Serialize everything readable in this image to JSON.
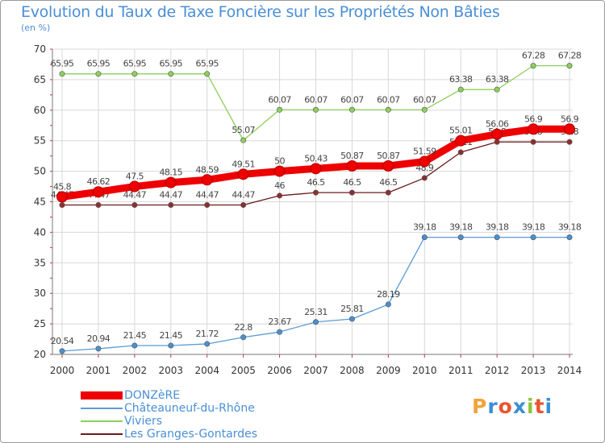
{
  "title": "Evolution du Taux de Taxe Foncière sur les Propriétés Non Bâties",
  "unit": "(en %)",
  "brand": {
    "letters": [
      "P",
      "r",
      "o",
      "x",
      "i",
      "t",
      "i"
    ],
    "colors": [
      "#f2a33a",
      "#3a8fd6",
      "#e8552d",
      "#3a8fd6",
      "#8cc43e",
      "#e8552d",
      "#3a8fd6"
    ]
  },
  "chart_data": {
    "type": "line",
    "title": "Evolution du Taux de Taxe Foncière sur les Propriétés Non Bâties",
    "ylabel": "(en %)",
    "xlabel": "",
    "ylim": [
      20,
      70
    ],
    "yticks": [
      20,
      25,
      30,
      35,
      40,
      45,
      50,
      55,
      60,
      65,
      70
    ],
    "grid": true,
    "legend": "bottom-left",
    "categories": [
      "2000",
      "2001",
      "2002",
      "2003",
      "2004",
      "2005",
      "2006",
      "2007",
      "2008",
      "2009",
      "2010",
      "2011",
      "2012",
      "2013",
      "2014"
    ],
    "series": [
      {
        "name": "Les Granges-Gontardes",
        "color": "#6b1a1a",
        "point": "#8c2f2f",
        "weight": "thin",
        "values": [
          44.47,
          44.47,
          44.47,
          44.47,
          44.47,
          44.47,
          46,
          46.5,
          46.5,
          46.5,
          48.9,
          53.11,
          54.8,
          54.8,
          54.8
        ],
        "labels": [
          "44.47",
          "44.47",
          "44.47",
          "44.47",
          "44.47",
          "44.47",
          "46",
          "46.5",
          "46.5",
          "46.5",
          "48.9",
          "53.11",
          "54.8",
          "54.8",
          "54.8"
        ]
      },
      {
        "name": "Viviers",
        "color": "#8dcf5a",
        "point": "#8dcf5a",
        "weight": "thin",
        "values": [
          65.95,
          65.95,
          65.95,
          65.95,
          65.95,
          55.07,
          60.07,
          60.07,
          60.07,
          60.07,
          60.07,
          63.38,
          63.38,
          67.28,
          67.28
        ],
        "labels": [
          "65.95",
          "65.95",
          "65.95",
          "65.95",
          "65.95",
          "55.07",
          "60.07",
          "60.07",
          "60.07",
          "60.07",
          "60.07",
          "63.38",
          "63.38",
          "67.28",
          "67.28"
        ]
      },
      {
        "name": "Châteauneuf-du-Rhône",
        "color": "#5a9bd5",
        "point": "#4a90d0",
        "weight": "thin",
        "values": [
          20.54,
          20.94,
          21.45,
          21.45,
          21.72,
          22.8,
          23.67,
          25.31,
          25.81,
          28.19,
          39.18,
          39.18,
          39.18,
          39.18,
          39.18
        ],
        "labels": [
          "20.54",
          "20.94",
          "21.45",
          "21.45",
          "21.72",
          "22.8",
          "23.67",
          "25.31",
          "25.81",
          "28.19",
          "39.18",
          "39.18",
          "39.18",
          "39.18",
          "39.18"
        ]
      },
      {
        "name": "DONZèRE",
        "color": "#ee0000",
        "point": "#ee0000",
        "weight": "thick",
        "values": [
          45.8,
          46.62,
          47.5,
          48.15,
          48.59,
          49.51,
          50,
          50.43,
          50.87,
          50.87,
          51.59,
          55.01,
          56.06,
          56.9,
          56.9
        ],
        "labels": [
          "45.8",
          "46.62",
          "47.5",
          "48.15",
          "48.59",
          "49.51",
          "50",
          "50.43",
          "50.87",
          "50.87",
          "51.59",
          "55.01",
          "56.06",
          "56.9",
          "56.9"
        ]
      }
    ]
  },
  "legend": [
    {
      "label": "DONZèRE",
      "color": "#ee0000",
      "weight": "thick"
    },
    {
      "label": "Châteauneuf-du-Rhône",
      "color": "#5a9bd5",
      "weight": "thin"
    },
    {
      "label": "Viviers",
      "color": "#8dcf5a",
      "weight": "thin"
    },
    {
      "label": "Les Granges-Gontardes",
      "color": "#6b1a1a",
      "weight": "thin"
    }
  ]
}
